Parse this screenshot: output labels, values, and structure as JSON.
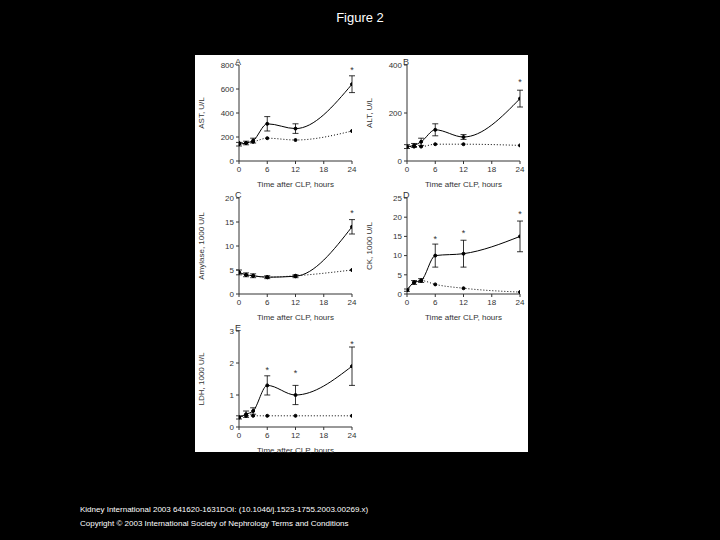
{
  "figure_title": "Figure 2",
  "footer": [
    "Kidney International 2003 641620-1631DOI: (10.1046/j.1523-1755.2003.00269.x)",
    "Copyright © 2003 International Society of Nephrology Terms and Conditions"
  ],
  "chart_data": [
    {
      "type": "line",
      "title": "A",
      "x_label": "Time after CLP, hours",
      "y_label": "AST, U/L",
      "x": [
        0,
        1.5,
        3,
        6,
        12,
        24
      ],
      "xlim": [
        0,
        24
      ],
      "xticks": [
        0,
        6,
        12,
        18,
        24
      ],
      "ylim": [
        0,
        800
      ],
      "yticks": [
        0,
        200,
        400,
        600,
        800
      ],
      "grid": false,
      "series": [
        {
          "color": "#000000",
          "line_style": "solid",
          "marker": "circle",
          "values": [
            140,
            150,
            170,
            310,
            270,
            640
          ],
          "errors": [
            15,
            15,
            20,
            60,
            40,
            70
          ]
        },
        {
          "color": "#000000",
          "line_style": "dotted",
          "marker": "circle",
          "values": [
            150,
            150,
            160,
            190,
            175,
            250
          ]
        }
      ],
      "annotations": [
        {
          "x": 24,
          "y": 760,
          "text": "*"
        }
      ]
    },
    {
      "type": "line",
      "title": "B",
      "x_label": "Time after CLP, hours",
      "y_label": "ALT, U/L",
      "x": [
        0,
        1.5,
        3,
        6,
        12,
        24
      ],
      "xlim": [
        0,
        24
      ],
      "xticks": [
        0,
        6,
        12,
        18,
        24
      ],
      "ylim": [
        0,
        400
      ],
      "yticks": [
        0,
        200,
        400
      ],
      "grid": false,
      "series": [
        {
          "color": "#000000",
          "line_style": "solid",
          "marker": "circle",
          "values": [
            60,
            65,
            80,
            130,
            100,
            260
          ],
          "errors": [
            8,
            8,
            15,
            25,
            10,
            35
          ]
        },
        {
          "color": "#000000",
          "line_style": "dotted",
          "marker": "circle",
          "values": [
            60,
            60,
            60,
            70,
            70,
            65
          ]
        }
      ],
      "annotations": [
        {
          "x": 24,
          "y": 330,
          "text": "*"
        }
      ]
    },
    {
      "type": "line",
      "title": "C",
      "x_label": "Time after CLP, hours",
      "y_label": "Amylase, 1000 U/L",
      "x": [
        0,
        1.5,
        3,
        6,
        12,
        24
      ],
      "xlim": [
        0,
        24
      ],
      "xticks": [
        0,
        6,
        12,
        18,
        24
      ],
      "ylim": [
        0,
        20
      ],
      "yticks": [
        0,
        5,
        10,
        15,
        20
      ],
      "grid": false,
      "series": [
        {
          "color": "#000000",
          "line_style": "solid",
          "marker": "circle",
          "values": [
            4.5,
            4,
            3.8,
            3.5,
            3.7,
            14
          ],
          "errors": [
            0.5,
            0.4,
            0.4,
            0.3,
            0.3,
            1.5
          ]
        },
        {
          "color": "#000000",
          "line_style": "dotted",
          "marker": "circle",
          "values": [
            4.5,
            4,
            3.8,
            3.5,
            3.8,
            5
          ]
        }
      ],
      "annotations": [
        {
          "x": 24,
          "y": 17,
          "text": "*"
        }
      ]
    },
    {
      "type": "line",
      "title": "D",
      "x_label": "Time after CLP, hours",
      "y_label": "CK, 1000 U/L",
      "x": [
        0,
        1.5,
        3,
        6,
        12,
        24
      ],
      "xlim": [
        0,
        24
      ],
      "xticks": [
        0,
        6,
        12,
        18,
        24
      ],
      "ylim": [
        0,
        25
      ],
      "yticks": [
        0,
        5,
        10,
        15,
        20,
        25
      ],
      "grid": false,
      "series": [
        {
          "color": "#000000",
          "line_style": "solid",
          "marker": "circle",
          "values": [
            1,
            3,
            3.5,
            10,
            10.5,
            15
          ],
          "errors": [
            0.3,
            0.5,
            0.5,
            3,
            3.5,
            4
          ]
        },
        {
          "color": "#000000",
          "line_style": "dotted",
          "marker": "circle",
          "values": [
            1,
            3,
            3.5,
            2.5,
            1.5,
            0.5
          ]
        }
      ],
      "annotations": [
        {
          "x": 6,
          "y": 14.5,
          "text": "*"
        },
        {
          "x": 12,
          "y": 16,
          "text": "*"
        },
        {
          "x": 24,
          "y": 21,
          "text": "*"
        }
      ]
    },
    {
      "type": "line",
      "title": "E",
      "x_label": "Time after CLP, hours",
      "y_label": "LDH, 1000 U/L",
      "x": [
        0,
        1.5,
        3,
        6,
        12,
        24
      ],
      "xlim": [
        0,
        24
      ],
      "xticks": [
        0,
        6,
        12,
        18,
        24
      ],
      "ylim": [
        0,
        3
      ],
      "yticks": [
        0,
        1,
        2,
        3
      ],
      "grid": false,
      "series": [
        {
          "color": "#000000",
          "line_style": "solid",
          "marker": "circle",
          "values": [
            0.3,
            0.4,
            0.5,
            1.3,
            1.0,
            1.9
          ],
          "errors": [
            0.05,
            0.1,
            0.1,
            0.3,
            0.3,
            0.6
          ]
        },
        {
          "color": "#000000",
          "line_style": "dotted",
          "marker": "circle",
          "values": [
            0.3,
            0.35,
            0.35,
            0.35,
            0.35,
            0.35
          ]
        }
      ],
      "annotations": [
        {
          "x": 6,
          "y": 1.8,
          "text": "*"
        },
        {
          "x": 12,
          "y": 1.7,
          "text": "*"
        },
        {
          "x": 24,
          "y": 2.6,
          "text": "*"
        }
      ]
    }
  ]
}
